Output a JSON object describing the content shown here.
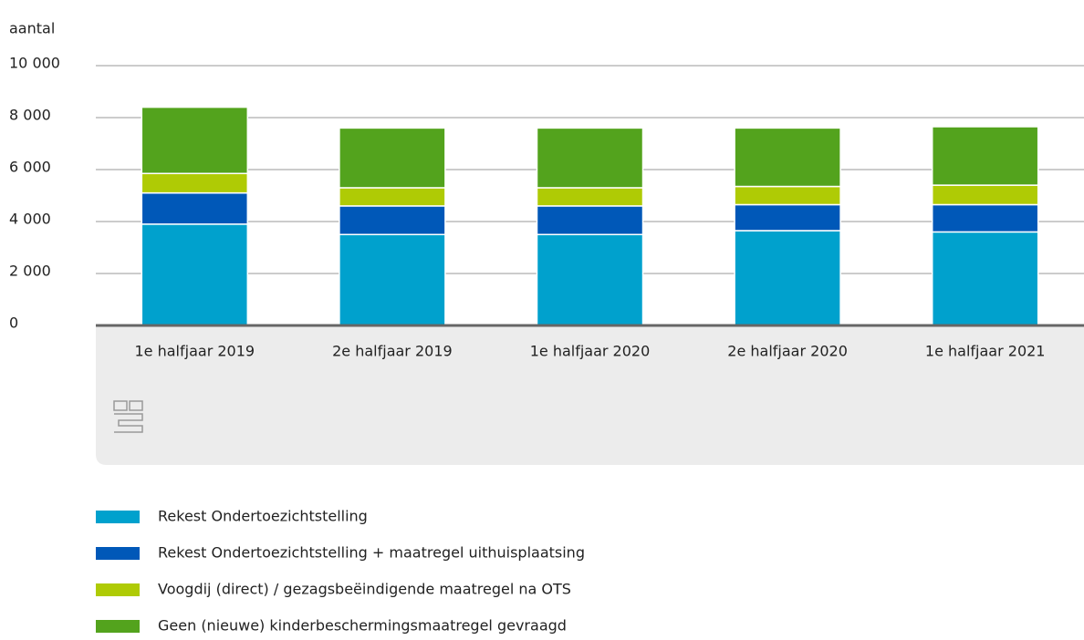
{
  "chart_data": {
    "type": "stacked_bar",
    "y_label": "aantal",
    "categories": [
      "1e halfjaar 2019",
      "2e halfjaar 2019",
      "1e halfjaar 2020",
      "2e halfjaar 2020",
      "1e halfjaar 2021"
    ],
    "series": [
      {
        "name": "Rekest Ondertoezichtstelling",
        "color": "#00a1cd",
        "values": [
          3900,
          3500,
          3500,
          3650,
          3600
        ]
      },
      {
        "name": "Rekest Ondertoezichtstelling + maatregel uithuisplaatsing",
        "color": "#0058b8",
        "values": [
          1200,
          1100,
          1100,
          1000,
          1050
        ]
      },
      {
        "name": "Voogdij (direct) / gezagsbeëindigende maatregel na OTS",
        "color": "#afcb05",
        "values": [
          750,
          700,
          700,
          700,
          750
        ]
      },
      {
        "name": "Geen (nieuwe) kinderbeschermingsmaatregel gevraagd",
        "color": "#53a31d",
        "values": [
          2550,
          2300,
          2300,
          2250,
          2250
        ]
      }
    ],
    "ylim": [
      0,
      10000
    ],
    "yticks": [
      0,
      {
        "value": 2000,
        "label": "2 000"
      },
      {
        "value": 4000,
        "label": "4 000"
      },
      {
        "value": 6000,
        "label": "6 000"
      },
      {
        "value": 8000,
        "label": "8 000"
      },
      {
        "value": 10000,
        "label": "10 000"
      }
    ],
    "grid": true
  }
}
